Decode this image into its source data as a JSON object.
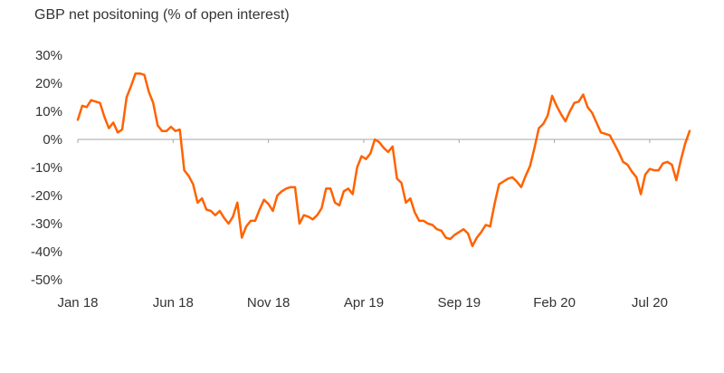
{
  "chart_data": {
    "type": "line",
    "title": "GBP net positoning (% of open interest)",
    "xlabel": "",
    "ylabel": "",
    "ylim": [
      -50,
      30
    ],
    "y_ticks": [
      30,
      20,
      10,
      0,
      -10,
      -20,
      -30,
      -40,
      -50
    ],
    "y_tick_labels": [
      "30%",
      "20%",
      "10%",
      "0%",
      "-10%",
      "-20%",
      "-30%",
      "-40%",
      "-50%"
    ],
    "x_tick_labels": [
      "Jan 18",
      "Jun 18",
      "Nov 18",
      "Apr 19",
      "Sep 19",
      "Feb 20",
      "Jul 20"
    ],
    "x_tick_positions": [
      0,
      21.5,
      43,
      64.5,
      86,
      107.5,
      129
    ],
    "grid": false,
    "color": "#FF6200",
    "series": [
      {
        "values": [
          7,
          12,
          11.5,
          14,
          13.5,
          13,
          8,
          4,
          6,
          2.5,
          3.5,
          15,
          19,
          23.5,
          23.5,
          23,
          17,
          13,
          5,
          3,
          3,
          4.5,
          3,
          3.5,
          -11,
          -13,
          -16,
          -22.5,
          -21,
          -25,
          -25.5,
          -27,
          -25.5,
          -28,
          -30,
          -27.5,
          -22.5,
          -35,
          -31,
          -29,
          -29,
          -25,
          -21.5,
          -23,
          -25.5,
          -20,
          -18.5,
          -17.5,
          -17,
          -17,
          -30,
          -27,
          -27.5,
          -28.5,
          -27,
          -24.5,
          -17.5,
          -17.5,
          -22.5,
          -23.5,
          -18.5,
          -17.5,
          -19.5,
          -10,
          -6,
          -7,
          -5,
          0,
          -1,
          -3,
          -4.5,
          -2.5,
          -14,
          -15.5,
          -22.5,
          -21,
          -26,
          -29,
          -29,
          -30,
          -30.5,
          -32,
          -32.5,
          -35,
          -35.5,
          -34,
          -33,
          -32,
          -33.5,
          -38,
          -35,
          -33,
          -30.5,
          -31,
          -23,
          -16,
          -15,
          -14,
          -13.5,
          -15,
          -17,
          -13,
          -9.5,
          -3,
          4,
          5.5,
          8.5,
          15.5,
          12,
          9,
          6.5,
          10,
          13,
          13.5,
          16,
          11.5,
          9.5,
          6,
          2.5,
          2,
          1.5,
          -1.5,
          -4.5,
          -8,
          -9,
          -11.5,
          -13.5,
          -19.5,
          -12.5,
          -10.5,
          -11,
          -11,
          -8.5,
          -8,
          -9,
          -14.5,
          -7.5,
          -1.5,
          3
        ]
      }
    ]
  }
}
